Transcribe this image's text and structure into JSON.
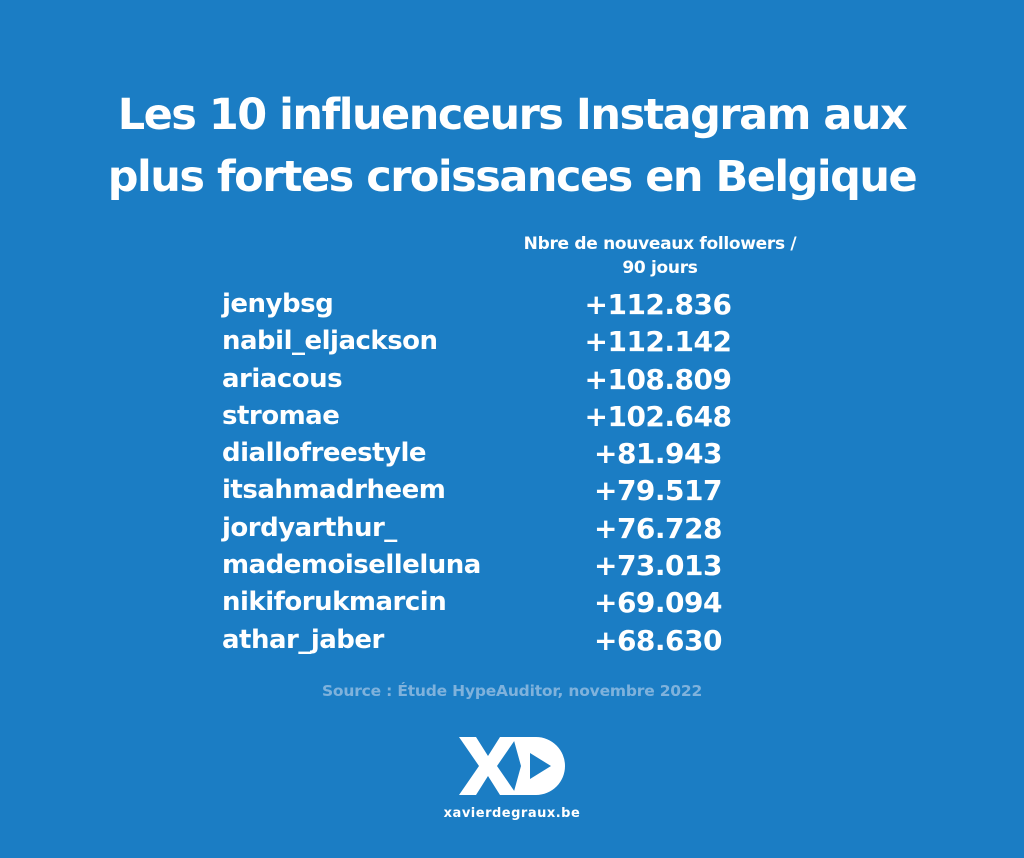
{
  "title": {
    "line1": "Les 10 influenceurs Instagram aux",
    "line2": "plus fortes croissances en Belgique"
  },
  "column_header": {
    "line1": "Nbre de nouveaux followers /",
    "line2": "90 jours"
  },
  "rows": [
    {
      "name": "jenybsg",
      "value": "+112.836"
    },
    {
      "name": "nabil_eljackson",
      "value": "+112.142"
    },
    {
      "name": "ariacous",
      "value": "+108.809"
    },
    {
      "name": "stromae",
      "value": "+102.648"
    },
    {
      "name": "diallofreestyle",
      "value": "+81.943"
    },
    {
      "name": "itsahmadrheem",
      "value": "+79.517"
    },
    {
      "name": "jordyarthur_",
      "value": "+76.728"
    },
    {
      "name": "mademoiselleluna",
      "value": "+73.013"
    },
    {
      "name": "nikiforukmarcin",
      "value": "+69.094"
    },
    {
      "name": "athar_jaber",
      "value": "+68.630"
    }
  ],
  "source": "Source : Étude HypeAuditor, novembre 2022",
  "logo": {
    "icon": "xd-logo-icon"
  },
  "website": "xavierdegraux.be",
  "colors": {
    "background": "#1b7dc4",
    "text": "#ffffff",
    "source_text": "#7fb2dc"
  }
}
